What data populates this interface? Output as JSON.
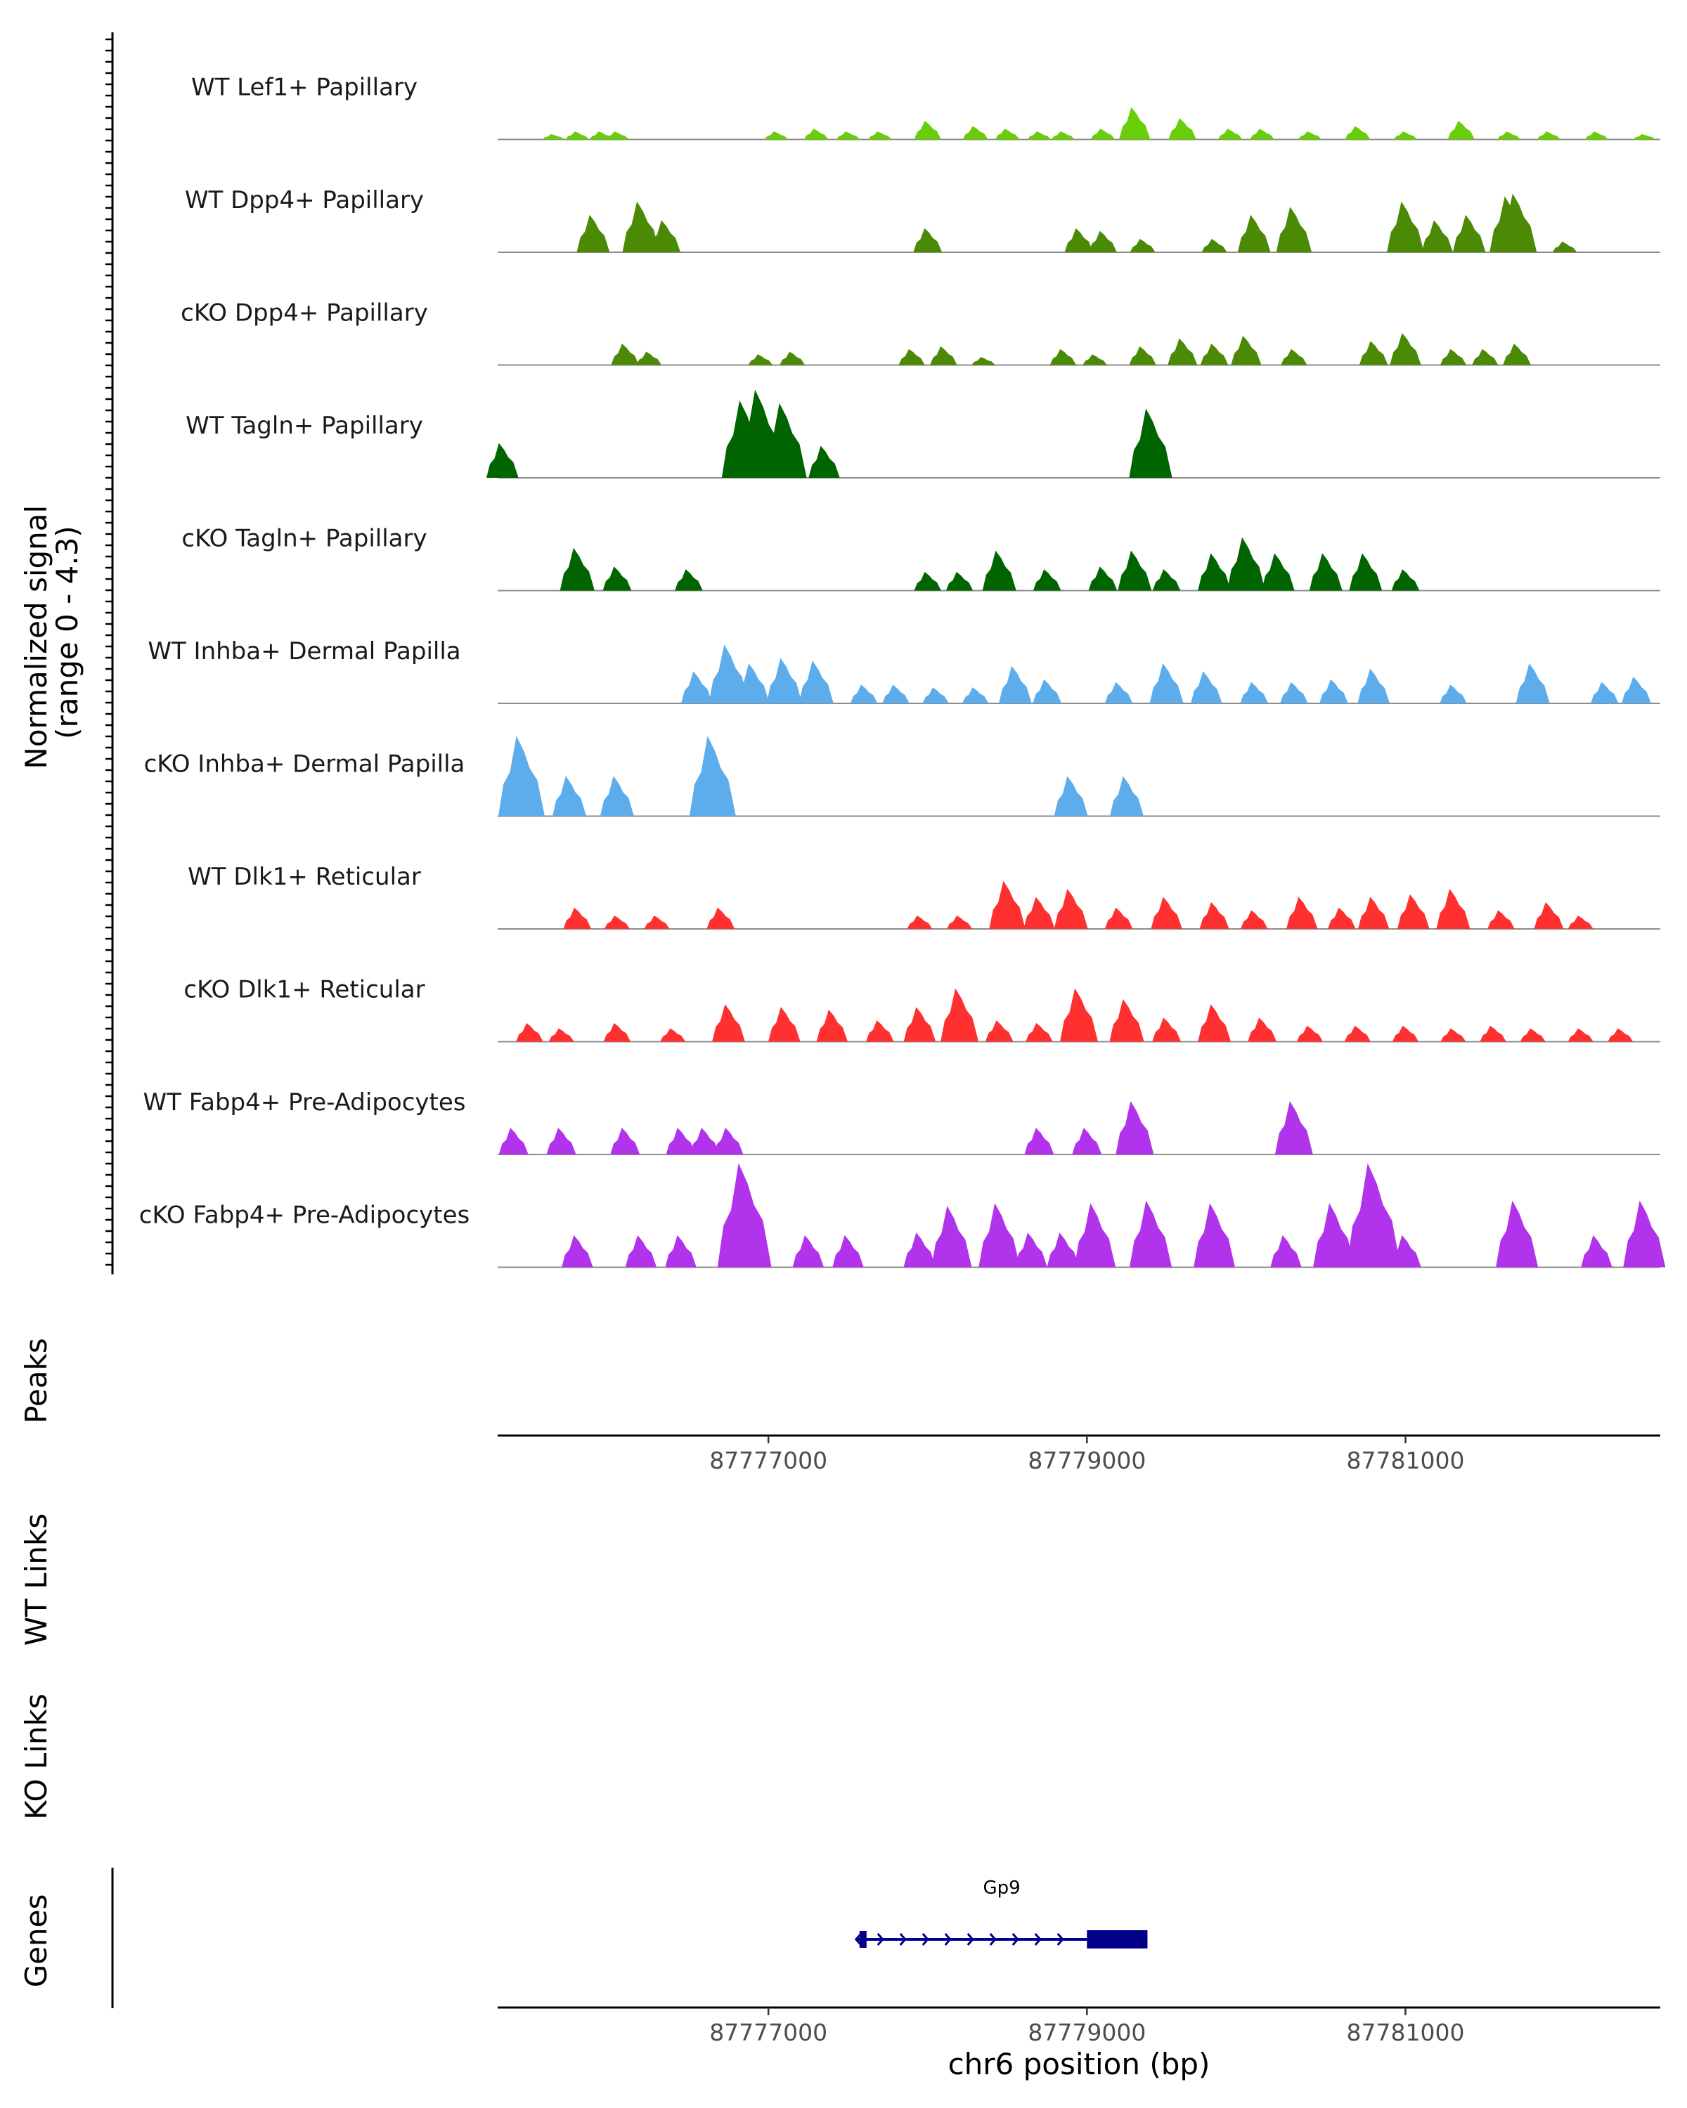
{
  "chart_data": {
    "type": "area",
    "title": "",
    "xlabel": "chr6 position (bp)",
    "ylabel_line1": "Normalized signal",
    "ylabel_line2": "(range 0 - 4.3)",
    "ylim": [
      0,
      4.3
    ],
    "xlim": [
      87775300,
      87782600
    ],
    "x_ticks": [
      87777000,
      87779000,
      87781000
    ],
    "x_tick_labels": [
      "87777000",
      "87779000",
      "87781000"
    ],
    "panels": {
      "peaks_label": "Peaks",
      "wt_links_label": "WT Links",
      "ko_links_label": "KO Links",
      "genes_label": "Genes"
    },
    "tracks": [
      {
        "name": "WT Lef1+ Papillary",
        "color": "#6ACD0A",
        "peaks": [
          [
            87775650,
            0.2
          ],
          [
            87775800,
            0.3
          ],
          [
            87775950,
            0.3
          ],
          [
            87776050,
            0.3
          ],
          [
            87777050,
            0.3
          ],
          [
            87777300,
            0.4
          ],
          [
            87777500,
            0.3
          ],
          [
            87777700,
            0.3
          ],
          [
            87778000,
            0.7
          ],
          [
            87778300,
            0.5
          ],
          [
            87778500,
            0.4
          ],
          [
            87778700,
            0.3
          ],
          [
            87778850,
            0.3
          ],
          [
            87779100,
            0.4
          ],
          [
            87779300,
            1.2
          ],
          [
            87779600,
            0.8
          ],
          [
            87779900,
            0.4
          ],
          [
            87780100,
            0.4
          ],
          [
            87780400,
            0.3
          ],
          [
            87780700,
            0.5
          ],
          [
            87781000,
            0.3
          ],
          [
            87781350,
            0.7
          ],
          [
            87781650,
            0.3
          ],
          [
            87781900,
            0.3
          ],
          [
            87782200,
            0.3
          ],
          [
            87782500,
            0.2
          ]
        ]
      },
      {
        "name": "WT Dpp4+ Papillary",
        "color": "#4A8A05",
        "peaks": [
          [
            87775900,
            1.4
          ],
          [
            87776200,
            1.9
          ],
          [
            87776350,
            1.2
          ],
          [
            87778000,
            0.9
          ],
          [
            87778950,
            0.9
          ],
          [
            87779100,
            0.8
          ],
          [
            87779350,
            0.5
          ],
          [
            87779800,
            0.5
          ],
          [
            87780050,
            1.4
          ],
          [
            87780300,
            1.7
          ],
          [
            87781000,
            1.9
          ],
          [
            87781200,
            1.2
          ],
          [
            87781400,
            1.4
          ],
          [
            87781650,
            2.1
          ],
          [
            87781700,
            2.2
          ],
          [
            87782000,
            0.4
          ]
        ]
      },
      {
        "name": "cKO Dpp4+ Papillary",
        "color": "#4A8A05",
        "peaks": [
          [
            87776100,
            0.8
          ],
          [
            87776250,
            0.5
          ],
          [
            87776950,
            0.4
          ],
          [
            87777150,
            0.5
          ],
          [
            87777900,
            0.6
          ],
          [
            87778100,
            0.7
          ],
          [
            87778350,
            0.3
          ],
          [
            87778850,
            0.6
          ],
          [
            87779050,
            0.4
          ],
          [
            87779350,
            0.7
          ],
          [
            87779600,
            1.0
          ],
          [
            87779800,
            0.8
          ],
          [
            87780000,
            1.1
          ],
          [
            87780300,
            0.6
          ],
          [
            87780800,
            0.9
          ],
          [
            87781000,
            1.2
          ],
          [
            87781300,
            0.6
          ],
          [
            87781500,
            0.6
          ],
          [
            87781700,
            0.8
          ]
        ]
      },
      {
        "name": "WT Tagln+ Papillary",
        "color": "#006400",
        "peaks": [
          [
            87775330,
            1.3
          ],
          [
            87776850,
            2.9
          ],
          [
            87776950,
            3.3
          ],
          [
            87777100,
            2.8
          ],
          [
            87777350,
            1.2
          ],
          [
            87779400,
            2.6
          ]
        ]
      },
      {
        "name": "cKO Tagln+ Papillary",
        "color": "#006400",
        "peaks": [
          [
            87775800,
            1.6
          ],
          [
            87776050,
            0.9
          ],
          [
            87776500,
            0.8
          ],
          [
            87778000,
            0.7
          ],
          [
            87778200,
            0.7
          ],
          [
            87778450,
            1.5
          ],
          [
            87778750,
            0.8
          ],
          [
            87779100,
            0.9
          ],
          [
            87779300,
            1.5
          ],
          [
            87779500,
            0.8
          ],
          [
            87779800,
            1.4
          ],
          [
            87780000,
            2.0
          ],
          [
            87780200,
            1.4
          ],
          [
            87780500,
            1.4
          ],
          [
            87780750,
            1.4
          ],
          [
            87781000,
            0.8
          ]
        ]
      },
      {
        "name": "WT Inhba+ Dermal Papilla",
        "color": "#5DADEC",
        "peaks": [
          [
            87776550,
            1.2
          ],
          [
            87776750,
            2.2
          ],
          [
            87776900,
            1.5
          ],
          [
            87777100,
            1.7
          ],
          [
            87777300,
            1.6
          ],
          [
            87777600,
            0.7
          ],
          [
            87777800,
            0.7
          ],
          [
            87778050,
            0.6
          ],
          [
            87778300,
            0.6
          ],
          [
            87778550,
            1.4
          ],
          [
            87778750,
            0.9
          ],
          [
            87779200,
            0.8
          ],
          [
            87779500,
            1.5
          ],
          [
            87779750,
            1.2
          ],
          [
            87780050,
            0.8
          ],
          [
            87780300,
            0.8
          ],
          [
            87780550,
            0.9
          ],
          [
            87780800,
            1.3
          ],
          [
            87781300,
            0.7
          ],
          [
            87781800,
            1.5
          ],
          [
            87782250,
            0.8
          ],
          [
            87782450,
            1.0
          ]
        ]
      },
      {
        "name": "cKO Inhba+ Dermal Papilla",
        "color": "#5DADEC",
        "peaks": [
          [
            87775450,
            3.0
          ],
          [
            87775750,
            1.5
          ],
          [
            87776050,
            1.5
          ],
          [
            87776650,
            3.0
          ],
          [
            87778900,
            1.5
          ],
          [
            87779250,
            1.5
          ]
        ]
      },
      {
        "name": "WT Dlk1+ Reticular",
        "color": "#FF3030",
        "peaks": [
          [
            87775800,
            0.8
          ],
          [
            87776050,
            0.5
          ],
          [
            87776300,
            0.5
          ],
          [
            87776700,
            0.8
          ],
          [
            87777950,
            0.5
          ],
          [
            87778200,
            0.5
          ],
          [
            87778500,
            1.8
          ],
          [
            87778700,
            1.2
          ],
          [
            87778900,
            1.5
          ],
          [
            87779200,
            0.8
          ],
          [
            87779500,
            1.2
          ],
          [
            87779800,
            1.0
          ],
          [
            87780050,
            0.7
          ],
          [
            87780350,
            1.2
          ],
          [
            87780600,
            0.8
          ],
          [
            87780800,
            1.2
          ],
          [
            87781050,
            1.3
          ],
          [
            87781300,
            1.5
          ],
          [
            87781600,
            0.7
          ],
          [
            87781900,
            1.0
          ],
          [
            87782100,
            0.5
          ]
        ]
      },
      {
        "name": "cKO Dlk1+ Reticular",
        "color": "#FF3030",
        "peaks": [
          [
            87775500,
            0.7
          ],
          [
            87775700,
            0.5
          ],
          [
            87776050,
            0.7
          ],
          [
            87776400,
            0.5
          ],
          [
            87776750,
            1.4
          ],
          [
            87777100,
            1.3
          ],
          [
            87777400,
            1.2
          ],
          [
            87777700,
            0.8
          ],
          [
            87777950,
            1.3
          ],
          [
            87778200,
            2.0
          ],
          [
            87778450,
            0.8
          ],
          [
            87778700,
            0.7
          ],
          [
            87778950,
            2.0
          ],
          [
            87779250,
            1.6
          ],
          [
            87779500,
            0.9
          ],
          [
            87779800,
            1.4
          ],
          [
            87780100,
            0.9
          ],
          [
            87780400,
            0.6
          ],
          [
            87780700,
            0.6
          ],
          [
            87781000,
            0.6
          ],
          [
            87781300,
            0.5
          ],
          [
            87781550,
            0.6
          ],
          [
            87781800,
            0.5
          ],
          [
            87782100,
            0.5
          ],
          [
            87782350,
            0.5
          ]
        ]
      },
      {
        "name": "WT Fabp4+ Pre-Adipocytes",
        "color": "#B233EC",
        "peaks": [
          [
            87775400,
            1.0
          ],
          [
            87775700,
            1.0
          ],
          [
            87776100,
            1.0
          ],
          [
            87776450,
            1.0
          ],
          [
            87776600,
            1.0
          ],
          [
            87776750,
            1.0
          ],
          [
            87778700,
            1.0
          ],
          [
            87779000,
            1.0
          ],
          [
            87779300,
            2.0
          ],
          [
            87780300,
            2.0
          ]
        ]
      },
      {
        "name": "cKO Fabp4+ Pre-Adipocytes",
        "color": "#B233EC",
        "peaks": [
          [
            87775800,
            1.2
          ],
          [
            87776200,
            1.2
          ],
          [
            87776450,
            1.2
          ],
          [
            87776850,
            3.9
          ],
          [
            87777250,
            1.2
          ],
          [
            87777500,
            1.2
          ],
          [
            87777950,
            1.3
          ],
          [
            87778150,
            2.3
          ],
          [
            87778450,
            2.4
          ],
          [
            87778650,
            1.3
          ],
          [
            87778850,
            1.3
          ],
          [
            87779050,
            2.4
          ],
          [
            87779400,
            2.5
          ],
          [
            87779800,
            2.4
          ],
          [
            87780250,
            1.2
          ],
          [
            87780550,
            2.4
          ],
          [
            87780800,
            3.9
          ],
          [
            87781000,
            1.2
          ],
          [
            87781700,
            2.5
          ],
          [
            87782200,
            1.2
          ],
          [
            87782500,
            2.5
          ]
        ]
      }
    ],
    "gene": {
      "name": "Gp9",
      "start": 87777550,
      "end": 87779380,
      "cds_start": 87779000,
      "cds_end": 87779380,
      "color": "#00008B"
    }
  }
}
